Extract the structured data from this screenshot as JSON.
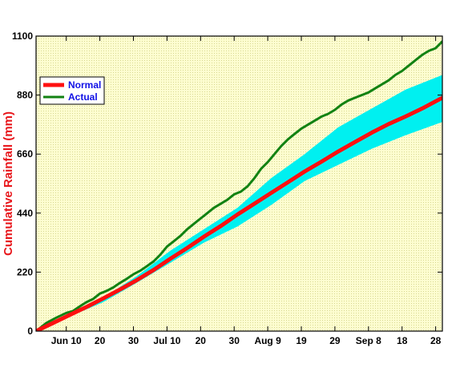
{
  "chart_data": {
    "type": "line",
    "title": "",
    "xlabel": "",
    "ylabel": "Cumulative Rainfall (mm)",
    "xlim": [
      0,
      121
    ],
    "ylim": [
      0,
      1100
    ],
    "y_ticks": [
      0,
      220,
      440,
      660,
      880,
      1100
    ],
    "x_ticks": [
      {
        "day": 9,
        "label": "Jun 10"
      },
      {
        "day": 19,
        "label": "20"
      },
      {
        "day": 29,
        "label": "30"
      },
      {
        "day": 39,
        "label": "Jul 10"
      },
      {
        "day": 49,
        "label": "20"
      },
      {
        "day": 59,
        "label": "30"
      },
      {
        "day": 69,
        "label": "Aug 9"
      },
      {
        "day": 79,
        "label": "19"
      },
      {
        "day": 89,
        "label": "29"
      },
      {
        "day": 99,
        "label": "Sep 8"
      },
      {
        "day": 109,
        "label": "18"
      },
      {
        "day": 119,
        "label": "28"
      }
    ],
    "x_unit": "days since Jun 1",
    "band": {
      "name": "Normal range",
      "color": "#00f0f0",
      "x": [
        0,
        20,
        30,
        40,
        50,
        60,
        70,
        80,
        90,
        100,
        110,
        121
      ],
      "upper": [
        5,
        125,
        205,
        300,
        380,
        460,
        570,
        660,
        760,
        830,
        900,
        955
      ],
      "lower": [
        0,
        108,
        180,
        255,
        330,
        390,
        470,
        560,
        620,
        680,
        730,
        780
      ]
    },
    "series": [
      {
        "name": "Normal",
        "color": "#ff1010",
        "x": [
          0,
          5,
          10,
          15,
          20,
          25,
          30,
          35,
          40,
          45,
          50,
          55,
          60,
          65,
          70,
          75,
          80,
          85,
          90,
          95,
          100,
          105,
          110,
          115,
          121
        ],
        "y": [
          0,
          30,
          60,
          90,
          122,
          155,
          190,
          228,
          270,
          310,
          352,
          392,
          435,
          475,
          515,
          555,
          595,
          632,
          670,
          705,
          740,
          772,
          800,
          830,
          870
        ]
      },
      {
        "name": "Actual",
        "color": "#128212",
        "x": [
          0,
          3,
          6,
          9,
          11,
          13,
          15,
          17,
          19,
          21,
          23,
          25,
          27,
          29,
          31,
          33,
          35,
          37,
          39,
          41,
          43,
          45,
          47,
          49,
          51,
          53,
          55,
          57,
          59,
          61,
          63,
          65,
          67,
          69,
          71,
          73,
          75,
          77,
          79,
          81,
          83,
          85,
          87,
          89,
          91,
          93,
          95,
          97,
          99,
          101,
          103,
          105,
          107,
          109,
          111,
          113,
          115,
          117,
          119,
          121
        ],
        "y": [
          0,
          30,
          50,
          68,
          75,
          92,
          108,
          120,
          140,
          150,
          163,
          180,
          195,
          212,
          225,
          242,
          260,
          285,
          315,
          335,
          355,
          380,
          400,
          420,
          440,
          460,
          475,
          490,
          510,
          520,
          540,
          570,
          605,
          630,
          660,
          690,
          715,
          735,
          755,
          770,
          785,
          800,
          810,
          825,
          845,
          860,
          870,
          880,
          890,
          905,
          920,
          935,
          955,
          970,
          990,
          1010,
          1030,
          1045,
          1055,
          1080
        ]
      }
    ],
    "legend": {
      "position": "top-left",
      "items": [
        {
          "label": "Normal",
          "color": "#ff1010"
        },
        {
          "label": "Actual",
          "color": "#128212"
        }
      ]
    },
    "background": "#fdfdc8",
    "grid": false
  }
}
